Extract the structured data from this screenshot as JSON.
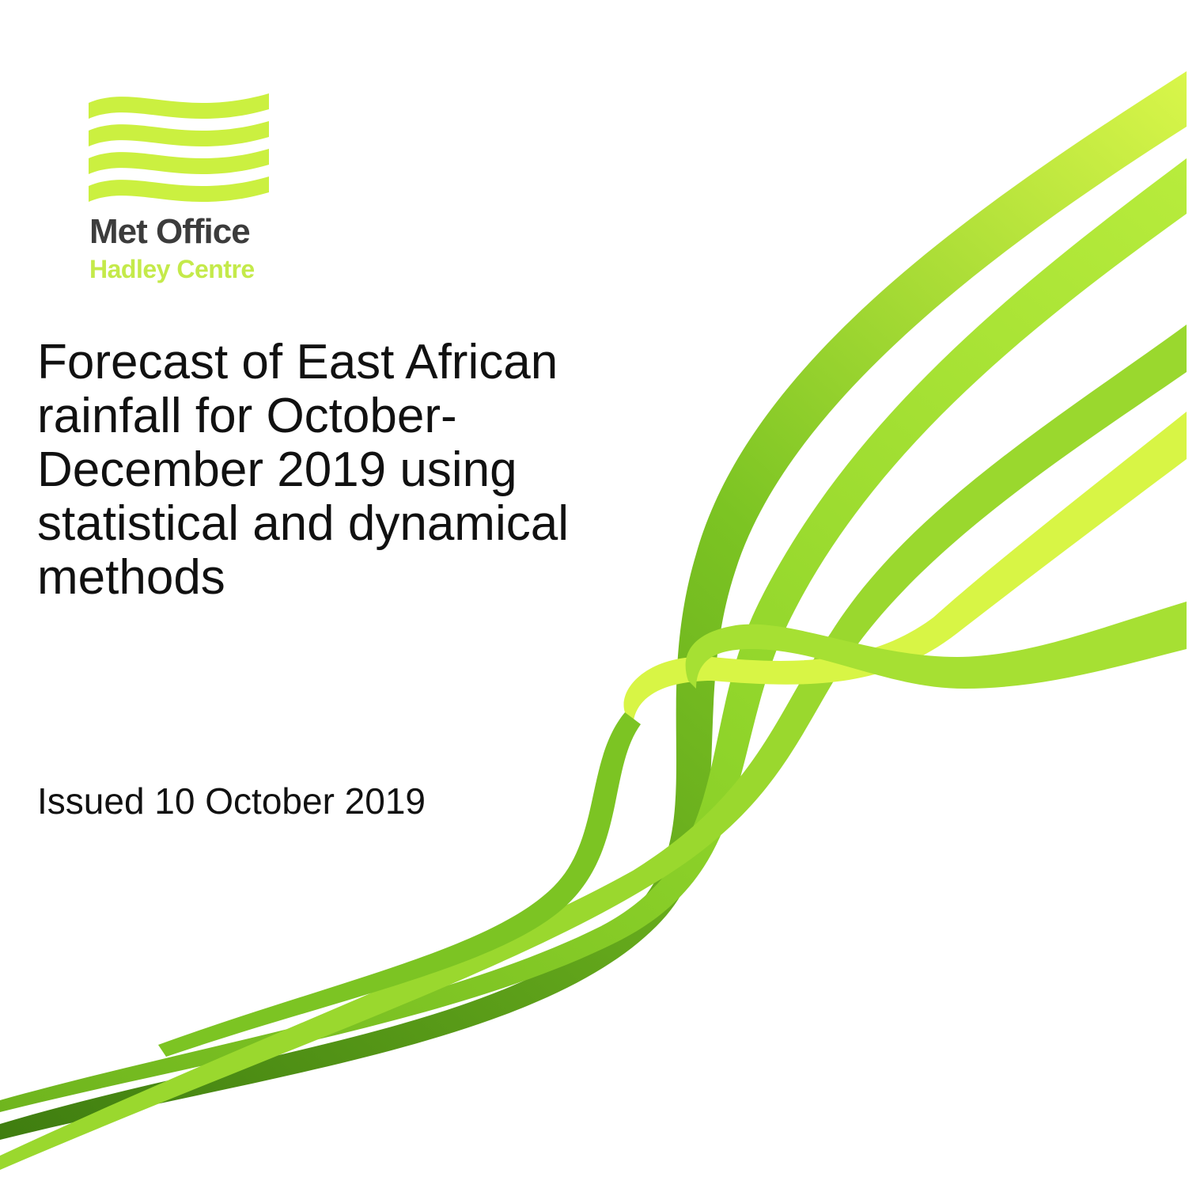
{
  "logo": {
    "name": "Met Office",
    "subname": "Hadley Centre"
  },
  "title_lines": [
    "Forecast of East African",
    "rainfall for October-",
    "December 2019 using",
    "statistical and dynamical",
    "methods"
  ],
  "issued": "Issued 10 October 2019"
}
